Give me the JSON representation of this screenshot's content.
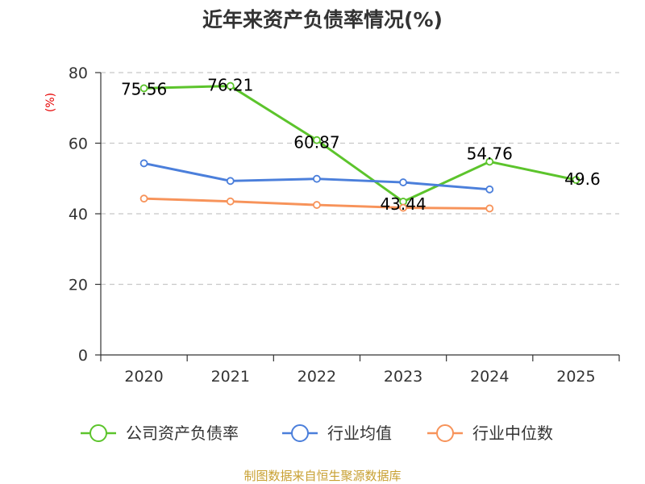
{
  "chart_data": {
    "type": "line",
    "title": "近年来资产负债率情况(%)",
    "ylabel": "(%)",
    "xlabel": "",
    "categories": [
      "2020",
      "2021",
      "2022",
      "2023",
      "2024",
      "2025"
    ],
    "ylim": [
      0,
      80
    ],
    "yticks": [
      "0",
      "20",
      "40",
      "60",
      "80"
    ],
    "grid": true,
    "legend_position": "bottom",
    "series": [
      {
        "name": "公司资产负债率",
        "color": "#5cc42c",
        "values": [
          75.56,
          76.21,
          60.87,
          43.44,
          54.76,
          49.6
        ],
        "labels": [
          "75.56",
          "76.21",
          "60.87",
          "43.44",
          "54.76",
          "49.6"
        ]
      },
      {
        "name": "行业均值",
        "color": "#4b7fdb",
        "values": [
          54.3,
          49.3,
          49.9,
          48.9,
          46.9,
          null
        ],
        "labels": []
      },
      {
        "name": "行业中位数",
        "color": "#f7935a",
        "values": [
          44.3,
          43.5,
          42.5,
          41.7,
          41.5,
          null
        ],
        "labels": []
      }
    ]
  },
  "source": "制图数据来自恒生聚源数据库"
}
